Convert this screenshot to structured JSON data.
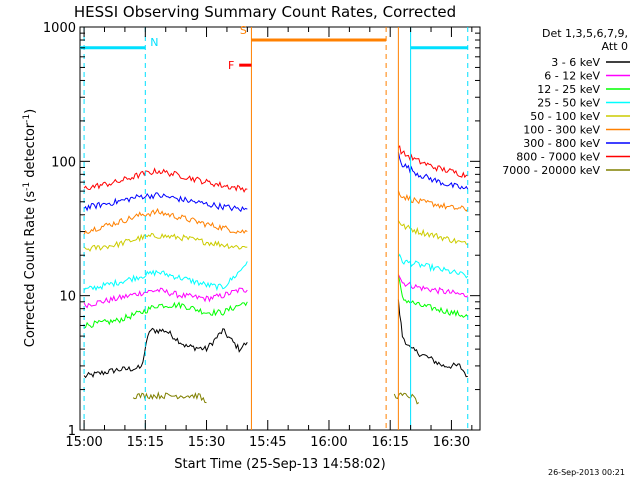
{
  "chart_data": {
    "type": "line",
    "title": "HESSI Observing Summary Count Rates, Corrected",
    "xlabel": "Start Time (25-Sep-13 14:58:02)",
    "ylabel": "Corrected Count Rate (s",
    "ylabel_sup1": "-1",
    "ylabel_mid": " detector",
    "ylabel_sup2": "-1",
    "ylabel_end": ")",
    "y_scale": "log",
    "ylim": [
      1,
      1000
    ],
    "xlim_minutes": [
      -1.0,
      97.0
    ],
    "x_tick_labels": [
      "15:00",
      "15:15",
      "15:30",
      "15:45",
      "16:00",
      "16:15",
      "16:30"
    ],
    "x_tick_minutes": [
      0,
      15,
      30,
      45,
      60,
      75,
      90
    ],
    "y_tick_labels": [
      "1",
      "10",
      "100",
      "1000"
    ],
    "y_tick_values": [
      1,
      10,
      100,
      1000
    ],
    "legend_header": [
      "Det 1,3,5,6,7,9,",
      "Att 0"
    ],
    "legend_position": "right",
    "series": [
      {
        "name": "3 - 6 keV",
        "color": "#000000",
        "segments": [
          {
            "x": [
              0,
              8,
              14,
              16,
              20,
              25,
              30,
              34,
              38,
              40
            ],
            "y": [
              2.5,
              2.8,
              2.9,
              5.5,
              5.5,
              4.2,
              4.0,
              5.5,
              4.0,
              4.5
            ]
          },
          {
            "x": [
              77,
              78,
              80,
              84,
              88,
              92,
              94
            ],
            "y": [
              9.0,
              5.0,
              4.0,
              3.5,
              3.0,
              3.0,
              2.5
            ]
          }
        ]
      },
      {
        "name": "6 - 12 keV",
        "color": "#ff00ff",
        "segments": [
          {
            "x": [
              0,
              8,
              14,
              18,
              24,
              30,
              34,
              38,
              40
            ],
            "y": [
              8.5,
              9.5,
              10.5,
              11,
              10,
              9.5,
              10,
              11,
              11
            ]
          },
          {
            "x": [
              77,
              78,
              82,
              86,
              90,
              94
            ],
            "y": [
              15,
              12.5,
              11.5,
              11,
              10.5,
              10
            ]
          }
        ]
      },
      {
        "name": "12 - 25 keV",
        "color": "#00ff00",
        "segments": [
          {
            "x": [
              0,
              8,
              14,
              18,
              24,
              30,
              34,
              38,
              40
            ],
            "y": [
              6.0,
              6.5,
              7.5,
              8.5,
              8.5,
              7.5,
              7.5,
              8.5,
              9.0
            ]
          },
          {
            "x": [
              77,
              78,
              82,
              86,
              90,
              94
            ],
            "y": [
              14,
              9.5,
              8.5,
              8.0,
              7.5,
              7.0
            ]
          }
        ]
      },
      {
        "name": "25 - 50 keV",
        "color": "#00ffff",
        "segments": [
          {
            "x": [
              0,
              8,
              14,
              18,
              24,
              30,
              34,
              38,
              40
            ],
            "y": [
              11,
              12.5,
              14,
              15,
              13.5,
              12,
              11.5,
              15,
              18
            ]
          },
          {
            "x": [
              77,
              78,
              82,
              86,
              90,
              94
            ],
            "y": [
              20,
              18,
              17,
              16,
              15,
              14
            ]
          }
        ]
      },
      {
        "name": "50 - 100 keV",
        "color": "#cccc00",
        "segments": [
          {
            "x": [
              0,
              8,
              14,
              18,
              24,
              30,
              34,
              38,
              40
            ],
            "y": [
              22,
              24,
              27,
              28,
              27,
              25,
              24,
              23,
              23
            ]
          },
          {
            "x": [
              77,
              78,
              82,
              86,
              90,
              94
            ],
            "y": [
              37,
              33,
              30,
              28,
              26,
              24
            ]
          }
        ]
      },
      {
        "name": "100 - 300 keV",
        "color": "#ff8000",
        "segments": [
          {
            "x": [
              0,
              8,
              14,
              18,
              24,
              30,
              34,
              38,
              40
            ],
            "y": [
              30,
              35,
              40,
              42,
              38,
              34,
              32,
              30,
              30
            ]
          },
          {
            "x": [
              77,
              78,
              82,
              86,
              90,
              94
            ],
            "y": [
              60,
              55,
              50,
              48,
              45,
              44
            ]
          }
        ]
      },
      {
        "name": "300 - 800 keV",
        "color": "#0000ff",
        "segments": [
          {
            "x": [
              0,
              8,
              14,
              18,
              24,
              30,
              34,
              38,
              40
            ],
            "y": [
              45,
              50,
              55,
              56,
              52,
              48,
              46,
              44,
              44
            ]
          },
          {
            "x": [
              77,
              78,
              82,
              86,
              90,
              94
            ],
            "y": [
              115,
              95,
              80,
              72,
              66,
              62
            ]
          }
        ]
      },
      {
        "name": "800 - 7000 keV",
        "color": "#ff0000",
        "segments": [
          {
            "x": [
              0,
              8,
              14,
              18,
              24,
              30,
              34,
              38,
              40
            ],
            "y": [
              63,
              70,
              80,
              85,
              78,
              70,
              66,
              63,
              62
            ]
          },
          {
            "x": [
              77,
              78,
              82,
              86,
              90,
              94
            ],
            "y": [
              130,
              115,
              100,
              90,
              84,
              78
            ]
          }
        ]
      },
      {
        "name": "7000 - 20000 keV",
        "color": "#808000",
        "segments": [
          {
            "x": [
              12,
              16,
              20,
              24,
              28,
              30
            ],
            "y": [
              1.8,
              1.8,
              1.8,
              1.8,
              1.8,
              1.6
            ]
          },
          {
            "x": [
              76,
              78,
              80,
              82
            ],
            "y": [
              1.8,
              1.8,
              1.8,
              1.6
            ]
          }
        ]
      }
    ],
    "vertical_lines": [
      {
        "x": 0,
        "color": "#00e0ff",
        "style": "dashed"
      },
      {
        "x": 15,
        "color": "#00e0ff",
        "style": "dashed"
      },
      {
        "x": 41,
        "color": "#ff8000",
        "style": "solid"
      },
      {
        "x": 74,
        "color": "#ff8000",
        "style": "dashed"
      },
      {
        "x": 77,
        "color": "#ff8000",
        "style": "solid"
      },
      {
        "x": 80,
        "color": "#00e0ff",
        "style": "solid"
      },
      {
        "x": 94,
        "color": "#00e0ff",
        "style": "dashed"
      }
    ],
    "flag_bars": [
      {
        "label": "N",
        "color": "#00e0ff",
        "x_start": -1.0,
        "x_end": 15,
        "y": 700
      },
      {
        "label": "N",
        "color": "#00e0ff",
        "x_start": 80,
        "x_end": 94,
        "y": 700
      },
      {
        "label": "S",
        "color": "#ff8000",
        "x_start": 41,
        "x_end": 74,
        "y": 800
      },
      {
        "label": "F",
        "color": "#ff0000",
        "x_start": 38,
        "x_end": 41,
        "y": 520
      }
    ]
  },
  "footer": {
    "date": "26-Sep-2013 00:21"
  }
}
